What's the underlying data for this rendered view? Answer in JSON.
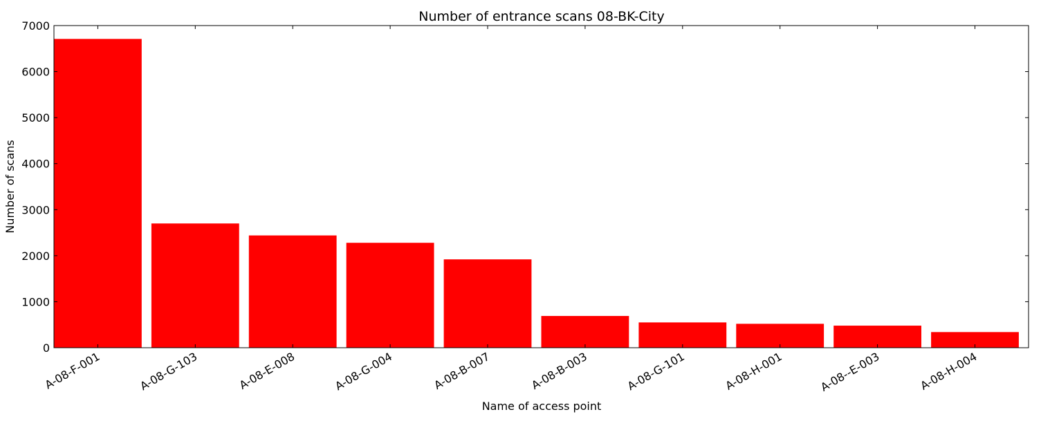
{
  "chart_data": {
    "type": "bar",
    "title": "Number of entrance scans 08-BK-City",
    "xlabel": "Name of access point",
    "ylabel": "Number of scans",
    "categories": [
      "A-08-F-001",
      "A-08-G-103",
      "A-08-E-008",
      "A-08-G-004",
      "A-08-B-007",
      "A-08-B-003",
      "A-08-G-101",
      "A-08-H-001",
      "A-08--E-003",
      "A-08-H-004"
    ],
    "values": [
      6710,
      2700,
      2440,
      2280,
      1920,
      690,
      550,
      520,
      480,
      340
    ],
    "ylim": [
      0,
      7000
    ],
    "yticks": [
      0,
      1000,
      2000,
      3000,
      4000,
      5000,
      6000,
      7000
    ],
    "bar_color": "#ff0000",
    "grid": false
  }
}
